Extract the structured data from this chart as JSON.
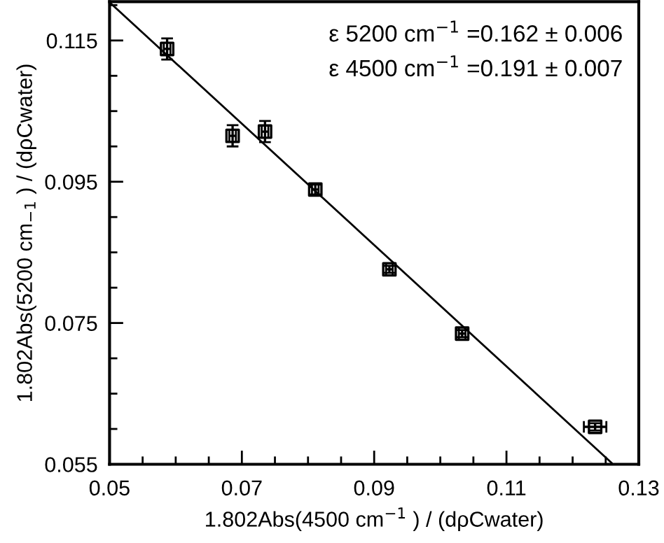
{
  "chart_data": {
    "type": "scatter",
    "xlabel": "1.802Abs(4500 cm$^{−1}$ ) / (dρCwater)",
    "ylabel": "1.802Abs(5200 cm$_{−1}$ ) / (dρCwater)",
    "annotations": [
      "ε 5200 cm$^{−1}$ =0.162 ± 0.006",
      "ε 4500 cm$^{−1}$ =0.191 ± 0.007"
    ],
    "series": [
      {
        "color": "#000000",
        "marker": "square",
        "x": [
          0.0587,
          0.0686,
          0.0735,
          0.0811,
          0.0923,
          0.1033,
          0.1234
        ],
        "values": [
          0.1138,
          0.1015,
          0.1021,
          0.0939,
          0.0826,
          0.0735,
          0.0603
        ],
        "errors": [
          0.0015,
          0.0015,
          0.0015,
          0.0007,
          0.0005,
          0.0005,
          0.0005
        ],
        "xerrors": [
          0.0005,
          0.0005,
          0.0005,
          0.0005,
          0.0005,
          0.0005,
          0.0017
        ]
      },
      {
        "type": "line",
        "color": "#000000",
        "marker": "none",
        "x": [
          0.05,
          0.1259
        ],
        "values": [
          0.1204,
          0.0552
        ]
      }
    ],
    "xlim": [
      0.05,
      0.13
    ],
    "ylim": [
      0.055,
      0.1205
    ],
    "xticks": [
      0.05,
      {
        "value": 0.055,
        "label": null
      },
      {
        "value": 0.06,
        "label": null
      },
      {
        "value": 0.065,
        "label": null
      },
      0.07,
      {
        "value": 0.075,
        "label": null
      },
      {
        "value": 0.08,
        "label": null
      },
      {
        "value": 0.085,
        "label": null
      },
      0.09,
      {
        "value": 0.095,
        "label": null
      },
      {
        "value": 0.1,
        "label": null
      },
      {
        "value": 0.105,
        "label": null
      },
      0.11,
      {
        "value": 0.115,
        "label": null
      },
      {
        "value": 0.12,
        "label": null
      },
      {
        "value": 0.125,
        "label": null
      },
      0.13
    ],
    "yticks": [
      0.055,
      {
        "value": 0.06,
        "label": null
      },
      {
        "value": 0.065,
        "label": null
      },
      {
        "value": 0.07,
        "label": null
      },
      0.075,
      {
        "value": 0.08,
        "label": null
      },
      {
        "value": 0.085,
        "label": null
      },
      {
        "value": 0.09,
        "label": null
      },
      0.095,
      {
        "value": 0.1,
        "label": null
      },
      {
        "value": 0.105,
        "label": null
      },
      {
        "value": 0.11,
        "label": null
      },
      0.115,
      {
        "value": 0.12,
        "label": null
      }
    ],
    "grid": false,
    "legend": false
  }
}
